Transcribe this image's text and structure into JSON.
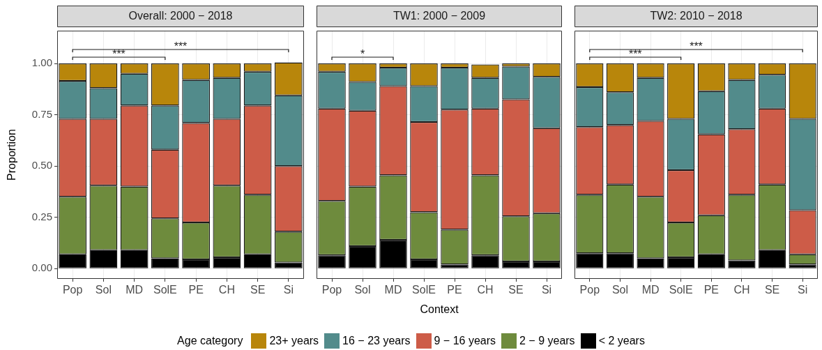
{
  "chart_data": [
    {
      "type": "bar",
      "title": "Overall: 2000 − 2018",
      "ylabel": "Proportion",
      "legend_title": "Age category",
      "legend": "bottom",
      "stacked": true,
      "grid": true,
      "categories": [
        "Pop",
        "Sol",
        "MD",
        "SolE",
        "PE",
        "CH",
        "SE",
        "Si"
      ],
      "ylim": [
        -0.05,
        1.16
      ],
      "yticks": [
        {
          "value": 0,
          "label": "0.00"
        },
        {
          "value": 0.25,
          "label": "0.25"
        },
        {
          "value": 0.5,
          "label": "0.50"
        },
        {
          "value": 0.75,
          "label": "0.75"
        },
        {
          "value": 1,
          "label": "1.00"
        }
      ],
      "annotations": [
        "***",
        "***"
      ],
      "series": [
        {
          "name": "< 2 years",
          "color": "#000000",
          "values": [
            0.07,
            0.09,
            0.09,
            0.05,
            0.045,
            0.055,
            0.07,
            0.03
          ]
        },
        {
          "name": "2 − 9 years",
          "color": "#6e8b3d",
          "values": [
            0.28,
            0.315,
            0.31,
            0.195,
            0.18,
            0.35,
            0.29,
            0.15
          ]
        },
        {
          "name": "9 − 16 years",
          "color": "#cd5c48",
          "values": [
            0.38,
            0.325,
            0.395,
            0.335,
            0.485,
            0.325,
            0.435,
            0.32
          ]
        },
        {
          "name": "16 − 23 years",
          "color": "#528b8b",
          "values": [
            0.185,
            0.15,
            0.155,
            0.215,
            0.21,
            0.2,
            0.165,
            0.345
          ]
        },
        {
          "name": "23+ years",
          "color": "#b8860b",
          "values": [
            0.085,
            0.12,
            0.05,
            0.205,
            0.08,
            0.07,
            0.04,
            0.16
          ]
        }
      ]
    },
    {
      "type": "bar",
      "title": "TW1: 2000 − 2009",
      "xlabel": "Context",
      "stacked": true,
      "grid": true,
      "tick_labels": "x",
      "categories": [
        "Pop",
        "Sol",
        "MD",
        "SolE",
        "PE",
        "CH",
        "SE",
        "Si"
      ],
      "ylim": [
        -0.05,
        1.16
      ],
      "yticks": [
        0,
        0.25,
        0.5,
        0.75,
        1
      ],
      "annotations": [
        "*"
      ],
      "series": [
        {
          "color": "#000000",
          "values": [
            0.065,
            0.11,
            0.14,
            0.045,
            0.02,
            0.065,
            0.035,
            0.035
          ]
        },
        {
          "color": "#6e8b3d",
          "values": [
            0.265,
            0.29,
            0.315,
            0.23,
            0.17,
            0.39,
            0.22,
            0.235
          ]
        },
        {
          "color": "#cd5c48",
          "values": [
            0.45,
            0.37,
            0.435,
            0.44,
            0.585,
            0.325,
            0.57,
            0.415
          ]
        },
        {
          "color": "#528b8b",
          "values": [
            0.18,
            0.14,
            0.09,
            0.175,
            0.205,
            0.15,
            0.16,
            0.25
          ]
        },
        {
          "color": "#b8860b",
          "values": [
            0.04,
            0.09,
            0.02,
            0.11,
            0.02,
            0.065,
            0.015,
            0.065
          ]
        }
      ]
    },
    {
      "type": "bar",
      "title": "TW2: 2010 − 2018",
      "stacked": true,
      "grid": true,
      "tick_labels": "x",
      "categories": [
        "Pop",
        "Sol",
        "MD",
        "SolE",
        "PE",
        "CH",
        "SE",
        "Si"
      ],
      "ylim": [
        -0.05,
        1.16
      ],
      "yticks": [
        0,
        0.25,
        0.5,
        0.75,
        1
      ],
      "annotations": [
        "***",
        "***"
      ],
      "series": [
        {
          "color": "#000000",
          "values": [
            0.075,
            0.075,
            0.05,
            0.055,
            0.07,
            0.04,
            0.09,
            0.02
          ]
        },
        {
          "color": "#6e8b3d",
          "values": [
            0.285,
            0.335,
            0.3,
            0.17,
            0.19,
            0.32,
            0.32,
            0.05
          ]
        },
        {
          "color": "#cd5c48",
          "values": [
            0.33,
            0.29,
            0.37,
            0.255,
            0.395,
            0.32,
            0.37,
            0.215
          ]
        },
        {
          "color": "#528b8b",
          "values": [
            0.195,
            0.16,
            0.21,
            0.25,
            0.21,
            0.24,
            0.165,
            0.445
          ]
        },
        {
          "color": "#b8860b",
          "values": [
            0.115,
            0.14,
            0.07,
            0.27,
            0.135,
            0.08,
            0.055,
            0.27
          ]
        }
      ]
    }
  ]
}
